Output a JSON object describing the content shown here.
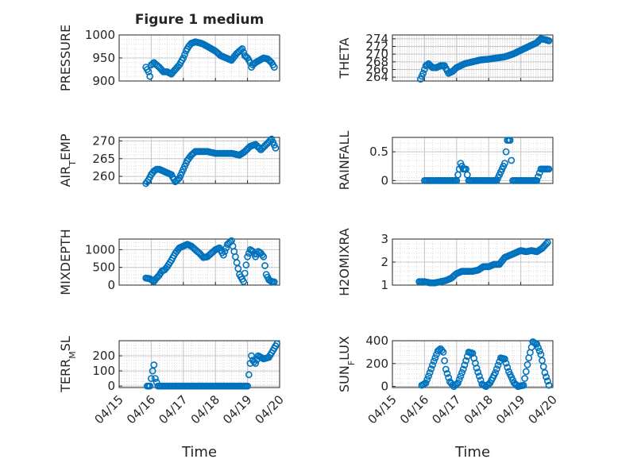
{
  "figure_title": "Figure 1 medium",
  "colors": {
    "marker": "#0072BD",
    "axis": "#262626",
    "grid": "#d9d9d9",
    "bg": "#ffffff"
  },
  "chart_data": [
    {
      "type": "scatter",
      "id": "pressure",
      "title": "Figure 1 medium",
      "ylabel": "PRESSURE",
      "ylabel_parts": [
        [
          "PRESSURE",
          "normal"
        ]
      ],
      "ylim": [
        900,
        1000
      ],
      "yticks": [
        900,
        950,
        1000
      ],
      "ytick_labels": [
        "900",
        "950",
        "1000"
      ],
      "grid": "on",
      "x": [
        "04/15 20:00",
        "04/15 21:00",
        "04/15 22:00",
        "04/15 23:00",
        "04/16 00:00",
        "04/16 02:00",
        "04/16 04:00",
        "04/16 06:00",
        "04/16 09:00",
        "04/16 12:00",
        "04/16 15:00",
        "04/16 18:00",
        "04/16 21:00",
        "04/17 00:00",
        "04/17 02:00",
        "04/17 04:00",
        "04/17 06:00",
        "04/17 09:00",
        "04/17 12:00",
        "04/17 15:00",
        "04/17 18:00",
        "04/17 21:00",
        "04/18 00:00",
        "04/18 04:00",
        "04/18 08:00",
        "04/18 12:00",
        "04/18 16:00",
        "04/18 20:00",
        "04/18 22:00",
        "04/19 00:00",
        "04/19 02:00",
        "04/19 03:00",
        "04/19 04:00",
        "04/19 06:00",
        "04/19 09:00",
        "04/19 12:00",
        "04/19 15:00",
        "04/19 18:00",
        "04/19 20:00"
      ],
      "y": [
        930,
        925,
        920,
        910,
        935,
        940,
        935,
        930,
        920,
        920,
        915,
        925,
        935,
        950,
        965,
        975,
        982,
        985,
        983,
        980,
        975,
        970,
        965,
        955,
        950,
        945,
        960,
        970,
        955,
        950,
        940,
        930,
        935,
        940,
        945,
        950,
        948,
        940,
        930
      ]
    },
    {
      "type": "scatter",
      "id": "theta",
      "ylabel": "THETA",
      "ylabel_parts": [
        [
          "THETA",
          "normal"
        ]
      ],
      "ylim": [
        263,
        275
      ],
      "yticks": [
        264,
        266,
        268,
        270,
        272,
        274
      ],
      "ytick_labels": [
        "264",
        "266",
        "268",
        "270",
        "272",
        "274"
      ],
      "grid": "on",
      "x": [
        "04/15 21:00",
        "04/15 23:00",
        "04/16 01:00",
        "04/16 03:00",
        "04/16 06:00",
        "04/16 09:00",
        "04/16 12:00",
        "04/16 15:00",
        "04/16 18:00",
        "04/16 21:00",
        "04/17 00:00",
        "04/17 06:00",
        "04/17 12:00",
        "04/17 18:00",
        "04/18 00:00",
        "04/18 06:00",
        "04/18 12:00",
        "04/18 18:00",
        "04/19 00:00",
        "04/19 06:00",
        "04/19 12:00",
        "04/19 15:00",
        "04/19 18:00",
        "04/19 21:00"
      ],
      "y": [
        263.5,
        265,
        267,
        267.5,
        266.5,
        266.5,
        267,
        267,
        265,
        265.5,
        266.5,
        267.5,
        268,
        268.5,
        268.7,
        269,
        269.3,
        270,
        271,
        272,
        273,
        274,
        273.8,
        273.5
      ]
    },
    {
      "type": "scatter",
      "id": "air_temp",
      "ylabel": "AIR_TEMP",
      "ylabel_parts": [
        [
          "AIR",
          "normal"
        ],
        [
          "T",
          "sub"
        ],
        [
          "EMP",
          "normal"
        ]
      ],
      "ylim": [
        258,
        271
      ],
      "yticks": [
        260,
        265,
        270
      ],
      "ytick_labels": [
        "260",
        "265",
        "270"
      ],
      "grid": "on",
      "x": [
        "04/15 20:00",
        "04/15 22:00",
        "04/16 00:00",
        "04/16 02:00",
        "04/16 04:00",
        "04/16 06:00",
        "04/16 09:00",
        "04/16 12:00",
        "04/16 15:00",
        "04/16 18:00",
        "04/16 21:00",
        "04/17 00:00",
        "04/17 03:00",
        "04/17 06:00",
        "04/17 09:00",
        "04/17 12:00",
        "04/17 18:00",
        "04/18 00:00",
        "04/18 06:00",
        "04/18 12:00",
        "04/18 18:00",
        "04/18 22:00",
        "04/19 02:00",
        "04/19 06:00",
        "04/19 10:00",
        "04/19 14:00",
        "04/19 18:00",
        "04/19 21:00"
      ],
      "y": [
        258,
        259,
        260.5,
        261.5,
        262,
        262,
        261.5,
        261,
        260.5,
        258.5,
        259.5,
        262,
        264.5,
        266,
        267,
        267,
        267,
        266.5,
        266.5,
        266.5,
        266,
        267,
        268.5,
        269,
        267.5,
        269,
        270.5,
        268
      ]
    },
    {
      "type": "scatter",
      "id": "rainfall",
      "ylabel": "RAINFALL",
      "ylabel_parts": [
        [
          "RAINFALL",
          "normal"
        ]
      ],
      "ylim": [
        -0.05,
        0.75
      ],
      "yticks": [
        0,
        0.5
      ],
      "ytick_labels": [
        "0",
        "0.5"
      ],
      "grid": "on",
      "x": [
        "04/16 00:00",
        "04/16 06:00",
        "04/16 12:00",
        "04/16 18:00",
        "04/17 00:00",
        "04/17 03:00",
        "04/17 05:00",
        "04/17 07:00",
        "04/17 09:00",
        "04/17 12:00",
        "04/17 18:00",
        "04/18 00:00",
        "04/18 06:00",
        "04/18 12:00",
        "04/18 14:00",
        "04/18 16:00",
        "04/18 18:00",
        "04/18 20:00",
        "04/19 00:00",
        "04/19 06:00",
        "04/19 12:00",
        "04/19 15:00",
        "04/19 18:00",
        "04/19 21:00"
      ],
      "y": [
        0,
        0,
        0,
        0,
        0,
        0.3,
        0.2,
        0.2,
        0,
        0,
        0,
        0,
        0,
        0.3,
        0.7,
        0.7,
        0,
        0,
        0,
        0,
        0,
        0.2,
        0.2,
        0.2
      ]
    },
    {
      "type": "scatter",
      "id": "mixdepth",
      "ylabel": "MIXDEPTH",
      "ylabel_parts": [
        [
          "MIXDEPTH",
          "normal"
        ]
      ],
      "ylim": [
        0,
        1300
      ],
      "yticks": [
        0,
        500,
        1000
      ],
      "ytick_labels": [
        "0",
        "500",
        "1000"
      ],
      "grid": "on",
      "x": [
        "04/15 20:00",
        "04/15 23:00",
        "04/16 02:00",
        "04/16 04:00",
        "04/16 06:00",
        "04/16 08:00",
        "04/16 10:00",
        "04/16 12:00",
        "04/16 15:00",
        "04/16 18:00",
        "04/16 21:00",
        "04/17 00:00",
        "04/17 03:00",
        "04/17 06:00",
        "04/17 09:00",
        "04/17 12:00",
        "04/17 15:00",
        "04/17 18:00",
        "04/17 21:00",
        "04/18 00:00",
        "04/18 03:00",
        "04/18 06:00",
        "04/18 09:00",
        "04/18 12:00",
        "04/18 15:00",
        "04/18 18:00",
        "04/18 21:00",
        "04/19 00:00",
        "04/19 02:00",
        "04/19 04:00",
        "04/19 06:00",
        "04/19 08:00",
        "04/19 10:00",
        "04/19 12:00",
        "04/19 14:00",
        "04/19 16:00",
        "04/19 18:00",
        "04/19 20:00"
      ],
      "y": [
        200,
        180,
        100,
        200,
        280,
        400,
        430,
        520,
        700,
        900,
        1050,
        1100,
        1150,
        1100,
        1000,
        900,
        780,
        800,
        900,
        1000,
        1050,
        850,
        1150,
        1250,
        800,
        300,
        100,
        800,
        1000,
        950,
        800,
        950,
        900,
        800,
        300,
        150,
        100,
        90
      ]
    },
    {
      "type": "scatter",
      "id": "h2omixra",
      "ylabel": "H2OMIXRA",
      "ylabel_parts": [
        [
          "H2OMIXRA",
          "normal"
        ]
      ],
      "ylim": [
        1,
        3
      ],
      "yticks": [
        1,
        2,
        3
      ],
      "ytick_labels": [
        "1",
        "2",
        "3"
      ],
      "grid": "on",
      "x": [
        "04/15 20:00",
        "04/16 00:00",
        "04/16 04:00",
        "04/16 08:00",
        "04/16 12:00",
        "04/16 16:00",
        "04/16 20:00",
        "04/17 00:00",
        "04/17 04:00",
        "04/17 08:00",
        "04/17 12:00",
        "04/17 16:00",
        "04/17 20:00",
        "04/18 00:00",
        "04/18 04:00",
        "04/18 08:00",
        "04/18 12:00",
        "04/18 16:00",
        "04/18 20:00",
        "04/19 00:00",
        "04/19 04:00",
        "04/19 08:00",
        "04/19 12:00",
        "04/19 16:00",
        "04/19 20:00"
      ],
      "y": [
        1.15,
        1.15,
        1.1,
        1.1,
        1.15,
        1.2,
        1.3,
        1.5,
        1.6,
        1.6,
        1.6,
        1.65,
        1.8,
        1.8,
        1.9,
        1.9,
        2.2,
        2.3,
        2.4,
        2.5,
        2.45,
        2.5,
        2.45,
        2.6,
        2.85
      ]
    },
    {
      "type": "scatter",
      "id": "terr_msl",
      "ylabel": "TERR_MSL",
      "ylabel_parts": [
        [
          "TERR",
          "normal"
        ],
        [
          "M",
          "sub"
        ],
        [
          "SL",
          "normal"
        ]
      ],
      "ylim": [
        -10,
        300
      ],
      "yticks": [
        0,
        100,
        200
      ],
      "ytick_labels": [
        "0",
        "100",
        "200"
      ],
      "grid": "on",
      "x": [
        "04/15 21:00",
        "04/15 23:00",
        "04/16 01:00",
        "04/16 02:00",
        "04/16 03:00",
        "04/16 05:00",
        "04/16 08:00",
        "04/16 12:00",
        "04/16 18:00",
        "04/17 00:00",
        "04/17 06:00",
        "04/17 12:00",
        "04/17 18:00",
        "04/18 00:00",
        "04/18 06:00",
        "04/18 12:00",
        "04/18 18:00",
        "04/19 00:00",
        "04/19 02:00",
        "04/19 03:00",
        "04/19 04:00",
        "04/19 06:00",
        "04/19 08:00",
        "04/19 12:00",
        "04/19 16:00",
        "04/19 20:00",
        "04/19 22:00"
      ],
      "y": [
        0,
        0,
        100,
        140,
        50,
        0,
        0,
        0,
        0,
        0,
        0,
        0,
        0,
        0,
        0,
        0,
        0,
        0,
        150,
        200,
        170,
        150,
        200,
        180,
        190,
        250,
        280
      ]
    },
    {
      "type": "scatter",
      "id": "sun_flux",
      "ylabel": "SUN_FLUX",
      "ylabel_parts": [
        [
          "SUN",
          "normal"
        ],
        [
          "F",
          "sub"
        ],
        [
          "LUX",
          "normal"
        ]
      ],
      "ylim": [
        -10,
        400
      ],
      "yticks": [
        0,
        200,
        400
      ],
      "ytick_labels": [
        "0",
        "200",
        "400"
      ],
      "grid": "on",
      "x": [
        "04/15 22:00",
        "04/16 01:00",
        "04/16 04:00",
        "04/16 07:00",
        "04/16 10:00",
        "04/16 12:00",
        "04/16 14:00",
        "04/16 16:00",
        "04/16 19:00",
        "04/16 22:00",
        "04/17 01:00",
        "04/17 05:00",
        "04/17 09:00",
        "04/17 12:00",
        "04/17 15:00",
        "04/17 19:00",
        "04/17 22:00",
        "04/18 01:00",
        "04/18 05:00",
        "04/18 09:00",
        "04/18 12:00",
        "04/18 15:00",
        "04/18 19:00",
        "04/18 22:00",
        "04/19 02:00",
        "04/19 06:00",
        "04/19 09:00",
        "04/19 12:00",
        "04/19 15:00",
        "04/19 18:00",
        "04/19 21:00"
      ],
      "y": [
        10,
        30,
        120,
        220,
        310,
        330,
        300,
        150,
        40,
        0,
        30,
        150,
        300,
        290,
        160,
        20,
        0,
        30,
        120,
        250,
        240,
        130,
        30,
        0,
        10,
        250,
        390,
        370,
        280,
        120,
        10
      ]
    }
  ],
  "x_axis": {
    "label": "Time",
    "range": [
      "04/15 00:00",
      "04/20 00:00"
    ],
    "ticks": [
      "04/15",
      "04/16",
      "04/17",
      "04/18",
      "04/19",
      "04/20"
    ]
  }
}
